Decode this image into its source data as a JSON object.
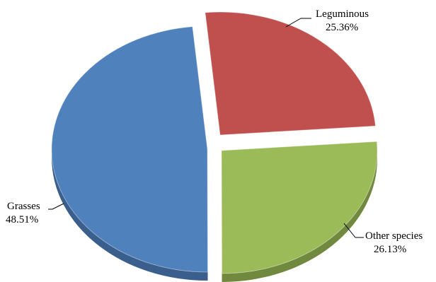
{
  "chart_data": {
    "type": "pie",
    "title": "",
    "slices": [
      {
        "name": "Leguminous",
        "value": 25.36,
        "label": "25.36%",
        "color": "#C0504D",
        "side_color": "#8E3A38"
      },
      {
        "name": "Other species",
        "value": 26.13,
        "label": "26.13%",
        "color": "#9BBB59",
        "side_color": "#71893F"
      },
      {
        "name": "Grasses",
        "value": 48.51,
        "label": "48.51%",
        "color": "#4F81BD",
        "side_color": "#3A5F8C"
      }
    ],
    "exploded": true,
    "style": "3d",
    "legend": "none"
  }
}
